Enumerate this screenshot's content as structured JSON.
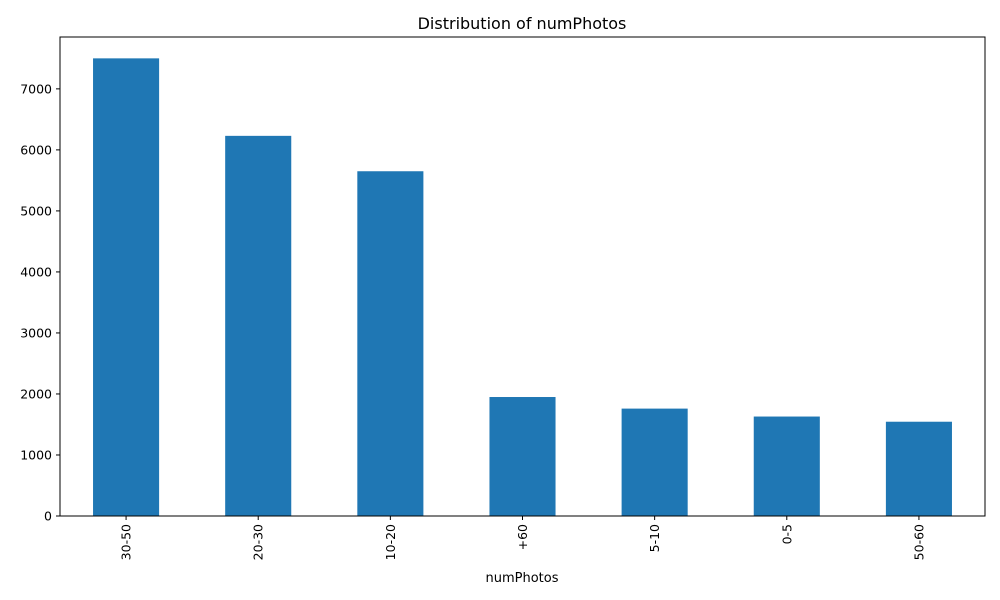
{
  "chart_data": {
    "type": "bar",
    "title": "Distribution of numPhotos",
    "xlabel": "numPhotos",
    "ylabel": "",
    "categories": [
      "30-50",
      "20-30",
      "10-20",
      "+60",
      "5-10",
      "0-5",
      "50-60"
    ],
    "values": [
      7500,
      6230,
      5650,
      1950,
      1760,
      1630,
      1545
    ],
    "ylim": [
      0,
      7850
    ],
    "yticks": [
      0,
      1000,
      2000,
      3000,
      4000,
      5000,
      6000,
      7000
    ],
    "ytick_labels": [
      "0",
      "1000",
      "2000",
      "3000",
      "4000",
      "5000",
      "6000",
      "7000"
    ],
    "grid": false,
    "legend": "none",
    "colors": {
      "bar": "#1f77b4",
      "axis": "#000000",
      "background": "#ffffff"
    }
  }
}
